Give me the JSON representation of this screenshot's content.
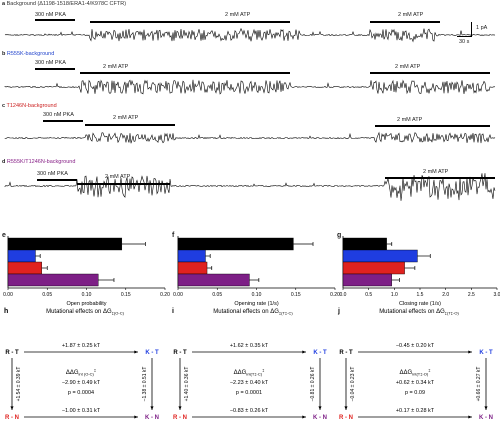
{
  "traces": [
    {
      "letter": "a",
      "title": "Background (Δ1198-1518/ERA1-4/K978C CFTR)",
      "title_color": "#333333",
      "pka": "300 nM PKA",
      "atp1": "2 mM ATP",
      "atp2": "2 mM ATP"
    },
    {
      "letter": "b",
      "title": "R555K-background",
      "title_color": "#2244cc",
      "pka": "300 nM PKA",
      "atp1": "2 mM ATP",
      "atp2": "2 mM ATP"
    },
    {
      "letter": "c",
      "title": "T1246N-background",
      "title_color": "#cc2222",
      "pka": "300 nM PKA",
      "atp1": "2 mM ATP",
      "atp2": "2 mM ATP"
    },
    {
      "letter": "d",
      "title": "R555K/T1246N-background",
      "title_color": "#882288",
      "pka": "300 nM PKA",
      "atp1": "2 mM ATP",
      "atp2": "2 mM ATP"
    }
  ],
  "scale_bar": {
    "current": "1 pA",
    "time": "30 s"
  },
  "colors": {
    "background": "#000000",
    "r555k": "#1f3de0",
    "t1246n": "#e0221f",
    "double": "#7d1f86"
  },
  "chart_data": [
    {
      "type": "bar",
      "panel": "e",
      "orientation": "horizontal",
      "xlabel": "Open probability",
      "xlim": [
        0,
        0.2
      ],
      "ticks": [
        "0.00",
        "0.05",
        "0.10",
        "0.15",
        "0.20"
      ],
      "values": [
        0.145,
        0.035,
        0.043,
        0.115
      ],
      "errors": [
        0.03,
        0.006,
        0.007,
        0.02
      ]
    },
    {
      "type": "bar",
      "panel": "f",
      "orientation": "horizontal",
      "xlabel": "Opening rate (1/s)",
      "xlim": [
        0,
        0.2
      ],
      "ticks": [
        "0.00",
        "0.05",
        "0.10",
        "0.15",
        "0.20"
      ],
      "values": [
        0.147,
        0.035,
        0.037,
        0.091
      ],
      "errors": [
        0.025,
        0.006,
        0.006,
        0.012
      ]
    },
    {
      "type": "bar",
      "panel": "g",
      "orientation": "horizontal",
      "xlabel": "Closing rate (1/s)",
      "xlim": [
        0,
        3
      ],
      "ticks": [
        "0.0",
        "0.5",
        "1.0",
        "1.5",
        "2.0",
        "2.5",
        "3.0"
      ],
      "values": [
        0.85,
        1.45,
        1.2,
        0.95
      ],
      "errors": [
        0.1,
        0.25,
        0.2,
        0.15
      ]
    }
  ],
  "cycles": [
    {
      "panel": "h",
      "title": "Mutational effects on ΔG",
      "title_sub": "‡(O-C)",
      "top": "+1.87 ± 0.25 kT",
      "bottom": "−1.00 ± 0.31 kT",
      "left": "+1.54 ± 0.39 kT",
      "right": "−1.38 ± 0.51 kT",
      "ddg": "ΔΔG",
      "ddg_sub": "int (O-C)",
      "ddg_sup": "‡",
      "val": "−2.90 ± 0.49 kT",
      "p": "p = 0.0004"
    },
    {
      "panel": "i",
      "title": "Mutational effects on ΔG",
      "title_sub": "‡(T‡-C)",
      "top": "+1.62 ± 0.35 kT",
      "bottom": "−0.83 ± 0.26 kT",
      "left": "+1.40 ± 0.36 kT",
      "right": "−0.81 ± 0.26 kT",
      "ddg": "ΔΔG",
      "ddg_sub": "int(T‡-C)",
      "ddg_sup": "‡",
      "val": "−2.23 ± 0.40 kT",
      "p": "p = 0.0001"
    },
    {
      "panel": "j",
      "title": "Mutational effects on ΔG",
      "title_sub": "‡(T‡-O)",
      "top": "−0.45 ± 0.20 kT",
      "bottom": "+0.17 ± 0.28 kT",
      "left": "−0.04 ± 0.23 kT",
      "right": "+0.66 ± 0.27 kT",
      "ddg": "ΔΔG",
      "ddg_sub": "int(T‡-O)",
      "ddg_sup": "‡",
      "val": "+0.62 ± 0.34 kT",
      "p": "p = 0.09"
    }
  ],
  "cycle_nodes": {
    "rt": "R - T",
    "kt": "K - T",
    "rn": "R - N",
    "kn": "K - N"
  }
}
